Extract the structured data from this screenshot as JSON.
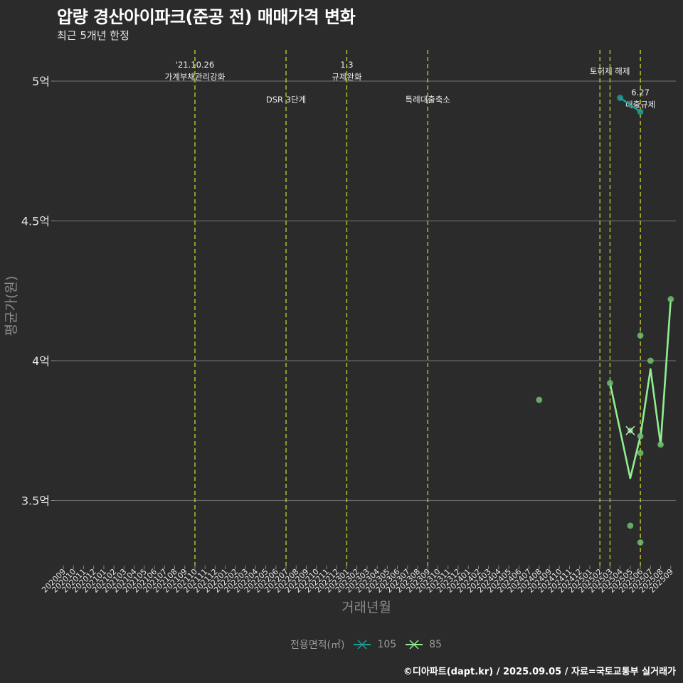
{
  "header": {
    "title": "압량 경산아이파크(준공 전) 매매가격 변화",
    "subtitle": "최근 5개년 한정"
  },
  "footer": {
    "credit": "©디아파트(dapt.kr) / 2025.09.05 / 자료=국토교통부 실거래가"
  },
  "legend": {
    "title": "전용면적(㎡)",
    "items": [
      {
        "label": "105",
        "color": "#1f9e96"
      },
      {
        "label": "85",
        "color": "#90ee90"
      }
    ]
  },
  "colors": {
    "background": "#2b2b2c",
    "grid": "#666666",
    "event_line": "#c8d22a",
    "series_105": "#1f9e96",
    "series_85": "#90ee90",
    "point_85": "#6fbf6f"
  },
  "chart_data": {
    "type": "line",
    "title": "압량 경산아이파크(준공 전) 매매가격 변화",
    "subtitle": "최근 5개년 한정",
    "xlabel": "거래년월",
    "ylabel": "평균가(원)",
    "ylim": [
      3.25,
      5.1
    ],
    "y_unit": "억",
    "y_ticks": [
      {
        "value": 3.5,
        "label": "3.5억"
      },
      {
        "value": 4.0,
        "label": "4억"
      },
      {
        "value": 4.5,
        "label": "4.5억"
      },
      {
        "value": 5.0,
        "label": "5억"
      }
    ],
    "grid": true,
    "legend_position": "bottom",
    "categories": [
      "202009",
      "202010",
      "202011",
      "202012",
      "202101",
      "202102",
      "202103",
      "202104",
      "202105",
      "202106",
      "202107",
      "202108",
      "202109",
      "202110",
      "202111",
      "202112",
      "202201",
      "202202",
      "202203",
      "202204",
      "202205",
      "202206",
      "202207",
      "202208",
      "202209",
      "202210",
      "202211",
      "202212",
      "202301",
      "202302",
      "202303",
      "202304",
      "202305",
      "202306",
      "202307",
      "202308",
      "202309",
      "202310",
      "202311",
      "202312",
      "202401",
      "202402",
      "202403",
      "202404",
      "202405",
      "202406",
      "202407",
      "202408",
      "202409",
      "202410",
      "202411",
      "202412",
      "202501",
      "202502",
      "202503",
      "202504",
      "202505",
      "202506",
      "202507",
      "202508",
      "202509"
    ],
    "series": [
      {
        "name": "105",
        "line": [
          {
            "x": "202504",
            "y": 4.94
          },
          {
            "x": "202506",
            "y": 4.89
          }
        ],
        "points": [
          {
            "x": "202504",
            "y": 4.94
          },
          {
            "x": "202506",
            "y": 4.89
          }
        ]
      },
      {
        "name": "85",
        "line": [
          {
            "x": "202503",
            "y": 3.92
          },
          {
            "x": "202505",
            "y": 3.58
          },
          {
            "x": "202506",
            "y": 3.73
          },
          {
            "x": "202507",
            "y": 3.97
          },
          {
            "x": "202508",
            "y": 3.7
          },
          {
            "x": "202509",
            "y": 4.22
          }
        ],
        "points": [
          {
            "x": "202408",
            "y": 3.86
          },
          {
            "x": "202503",
            "y": 3.92
          },
          {
            "x": "202505",
            "y": 3.41
          },
          {
            "x": "202506",
            "y": 4.09
          },
          {
            "x": "202506",
            "y": 3.73
          },
          {
            "x": "202506",
            "y": 3.67
          },
          {
            "x": "202506",
            "y": 3.35
          },
          {
            "x": "202507",
            "y": 4.0
          },
          {
            "x": "202508",
            "y": 3.7
          },
          {
            "x": "202509",
            "y": 4.22
          }
        ],
        "highlight": {
          "x": "202505",
          "y": 3.75,
          "marker": "x"
        }
      }
    ],
    "annotations": [
      {
        "x": "202110",
        "lines": [
          "'21.10.26",
          "가계부채관리강화"
        ],
        "row": "top"
      },
      {
        "x": "202207",
        "lines": [
          "DSR 3단계"
        ],
        "row": "bottom"
      },
      {
        "x": "202301",
        "lines": [
          "1.3",
          "규제완화"
        ],
        "row": "top"
      },
      {
        "x": "202309",
        "lines": [
          "특례대출축소"
        ],
        "row": "bottom"
      },
      {
        "x": "202502",
        "lines": [
          "토허제 해제"
        ],
        "row": "top2",
        "offset": 14
      },
      {
        "x": "202503",
        "lines": [],
        "row": "none"
      },
      {
        "x": "202506",
        "lines": [
          "6.27",
          "대출규제"
        ],
        "row": "bottom"
      }
    ]
  }
}
